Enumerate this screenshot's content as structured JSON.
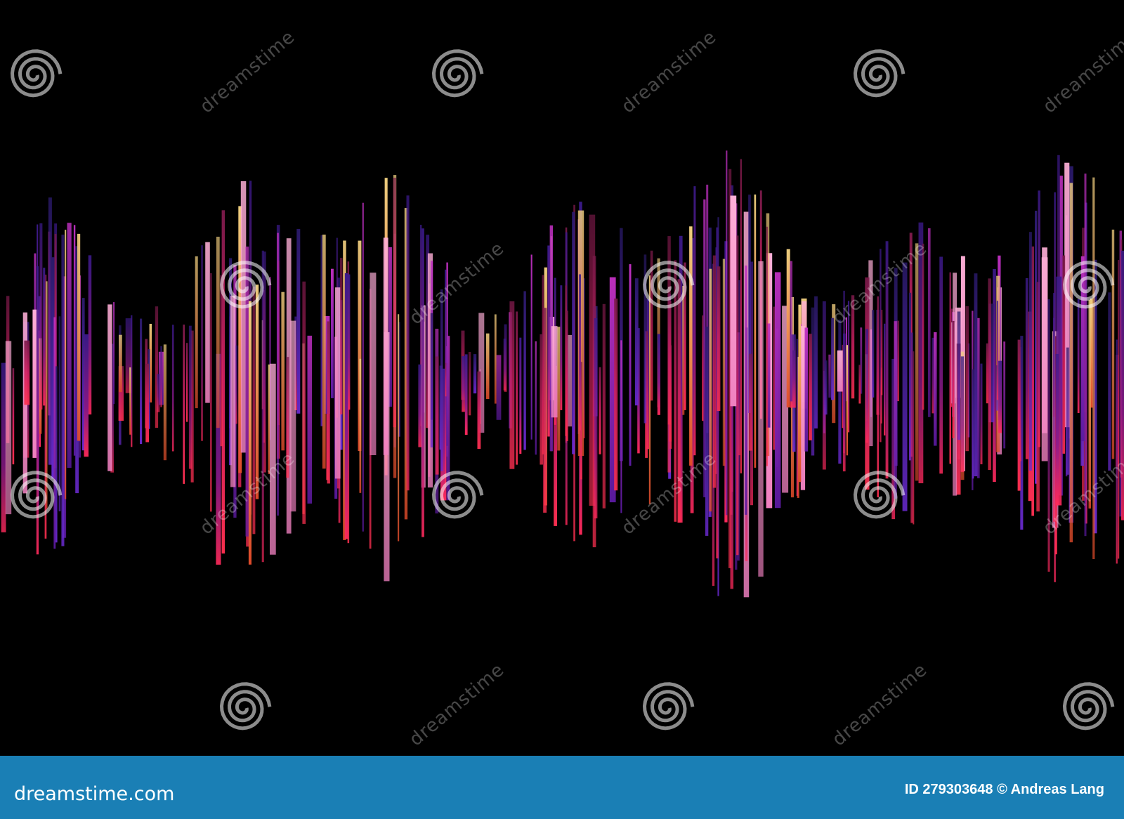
{
  "watermark": {
    "text": "dreamstime"
  },
  "footer": {
    "logo": "dreamstime.com",
    "credit": "ID 279303648 © Andreas Lang"
  }
}
